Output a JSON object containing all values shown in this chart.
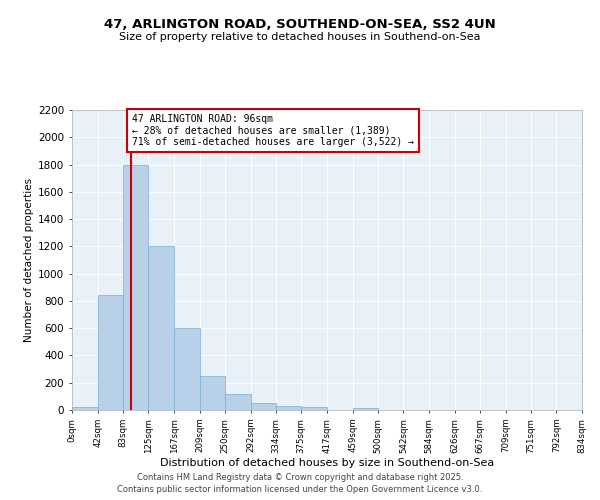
{
  "title1": "47, ARLINGTON ROAD, SOUTHEND-ON-SEA, SS2 4UN",
  "title2": "Size of property relative to detached houses in Southend-on-Sea",
  "xlabel": "Distribution of detached houses by size in Southend-on-Sea",
  "ylabel": "Number of detached properties",
  "bar_color": "#b8d0e8",
  "bar_edge_color": "#7aafd4",
  "bg_color": "#e8f0f8",
  "grid_color": "#ffffff",
  "annotation_box_color": "#cc0000",
  "property_line_color": "#cc0000",
  "property_value": 96,
  "annotation_title": "47 ARLINGTON ROAD: 96sqm",
  "annotation_line1": "← 28% of detached houses are smaller (1,389)",
  "annotation_line2": "71% of semi-detached houses are larger (3,522) →",
  "bins": [
    0,
    42,
    83,
    125,
    167,
    209,
    250,
    292,
    334,
    375,
    417,
    459,
    500,
    542,
    584,
    626,
    667,
    709,
    751,
    792,
    834
  ],
  "counts": [
    25,
    840,
    1800,
    1200,
    600,
    250,
    120,
    50,
    30,
    20,
    0,
    15,
    0,
    0,
    0,
    0,
    0,
    0,
    0,
    0
  ],
  "ylim": [
    0,
    2200
  ],
  "yticks": [
    0,
    200,
    400,
    600,
    800,
    1000,
    1200,
    1400,
    1600,
    1800,
    2000,
    2200
  ],
  "footer1": "Contains HM Land Registry data © Crown copyright and database right 2025.",
  "footer2": "Contains public sector information licensed under the Open Government Licence v3.0."
}
